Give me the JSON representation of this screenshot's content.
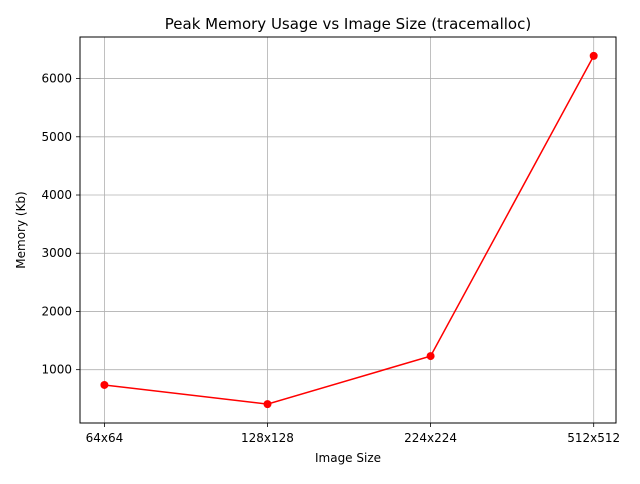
{
  "chart_data": {
    "type": "line",
    "title": "Peak Memory Usage vs Image Size (tracemalloc)",
    "xlabel": "Image Size",
    "ylabel": "Memory (Kb)",
    "categories": [
      "64x64",
      "128x128",
      "224x224",
      "512x512"
    ],
    "series": [
      {
        "values": [
          737,
          408,
          1233,
          6390
        ],
        "color": "#ff0000",
        "marker": "circle"
      }
    ],
    "yticks": [
      1000,
      2000,
      3000,
      4000,
      5000,
      6000
    ],
    "ylim": [
      84,
      6714
    ],
    "grid": true
  }
}
